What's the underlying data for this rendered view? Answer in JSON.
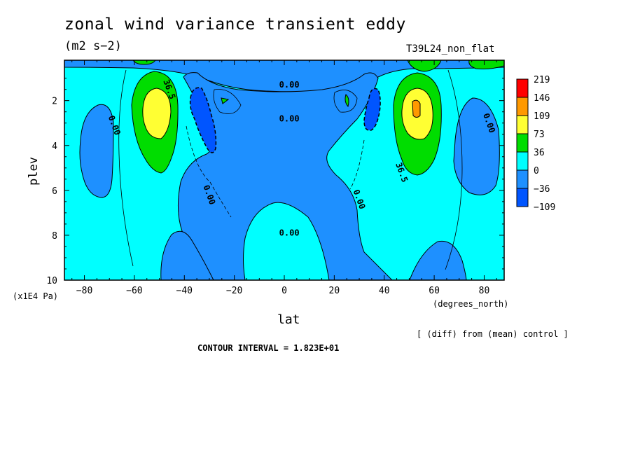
{
  "title": "zonal wind variance transient eddy",
  "units": "(m2 s−2)",
  "experiment": "T39L24_non_flat",
  "comparison_note": "[ (diff) from (mean) control ]",
  "contour_interval": "CONTOUR INTERVAL = 1.823E+01",
  "chart_data": {
    "type": "heatmap",
    "title": "zonal wind variance transient eddy",
    "xlabel": "lat",
    "x_unit": "(degrees_north)",
    "ylabel": "plev",
    "y_unit": "(x1E4 Pa)",
    "xlim": [
      -88,
      88
    ],
    "ylim": [
      10,
      0.2
    ],
    "x_ticks": [
      -80,
      -60,
      -40,
      -20,
      0,
      20,
      40,
      60,
      80
    ],
    "x_tick_labels": [
      "−80",
      "−60",
      "−40",
      "−20",
      "0",
      "20",
      "40",
      "60",
      "80"
    ],
    "y_ticks": [
      2,
      4,
      6,
      8,
      10
    ],
    "y_tick_labels": [
      "2",
      "4",
      "6",
      "8",
      "10"
    ],
    "colorbar": {
      "labels": [
        "219",
        "146",
        "109",
        "73",
        "36",
        "0",
        "−36",
        "−109"
      ],
      "colors": [
        "#ff0000",
        "#ff9900",
        "#ffff33",
        "#00dd00",
        "#00ffff",
        "#1e90ff",
        "#0055ff"
      ]
    },
    "contour_labels": [
      {
        "text": "0.00",
        "lat": 2,
        "plev": 1.3
      },
      {
        "text": "0.00",
        "lat": 2,
        "plev": 2.8
      },
      {
        "text": "0.00",
        "lat": 2,
        "plev": 7.9
      },
      {
        "text": "0.00",
        "lat": -68,
        "plev": 3.1
      },
      {
        "text": "0.00",
        "lat": -30,
        "plev": 6.2
      },
      {
        "text": "0.00",
        "lat": 30,
        "plev": 6.4
      },
      {
        "text": "0.00",
        "lat": 82,
        "plev": 3.0
      },
      {
        "text": "36.5",
        "lat": -46,
        "plev": 1.5
      },
      {
        "text": "36.5",
        "lat": 47,
        "plev": 5.2
      }
    ],
    "features": [
      {
        "type": "max",
        "lat": -52,
        "plev": 2.4,
        "value": 109
      },
      {
        "type": "max",
        "lat": 52,
        "plev": 2.4,
        "value": 146
      },
      {
        "type": "min",
        "lat": -35,
        "plev": 3.0,
        "value": -73
      },
      {
        "type": "min",
        "lat": 36,
        "plev": 2.5,
        "value": -73
      }
    ]
  }
}
